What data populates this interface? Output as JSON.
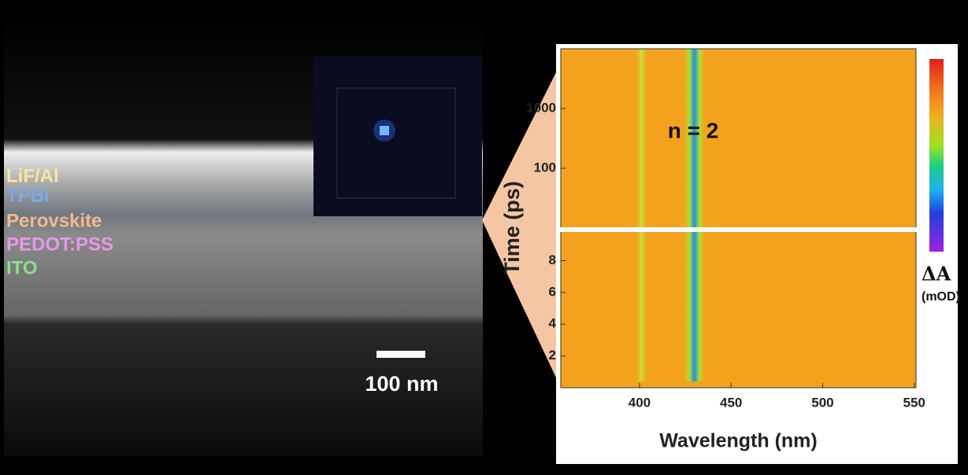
{
  "sem_panel": {
    "layers": [
      "LiF/Al",
      "TPBi",
      "Perovskite",
      "PEDOT:PSS",
      "ITO"
    ],
    "scale_bar": "100 nm"
  },
  "chart_data": {
    "type": "heatmap",
    "xlabel": "Wavelength (nm)",
    "ylabel": "Time (ps)",
    "annotation": "n = 2",
    "colorbar_label": "ΔA",
    "colorbar_unit": "(mOD)",
    "xlim": [
      357,
      551
    ],
    "xticks": [
      400,
      450,
      500,
      550
    ],
    "ylim": [
      0,
      9.8
    ],
    "yticks": [
      2,
      4,
      6,
      8
    ],
    "y2lim": [
      10,
      10000
    ],
    "y2ticks": [
      100,
      1000
    ],
    "y2log": true
  }
}
